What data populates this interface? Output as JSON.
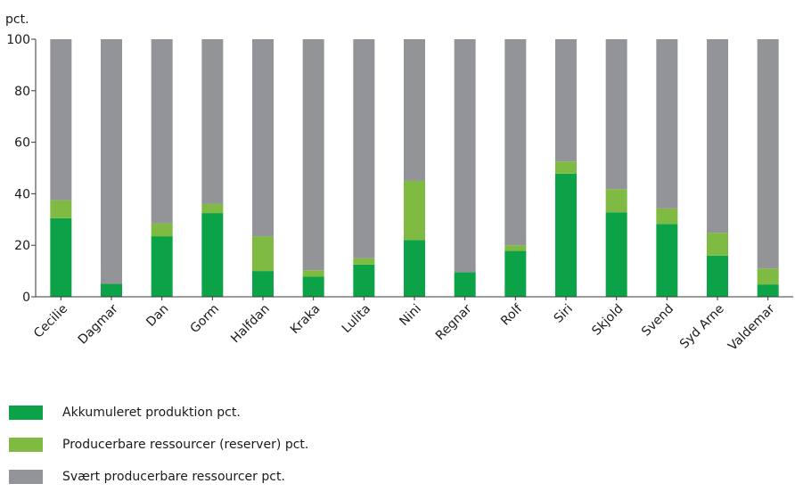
{
  "chart_data": {
    "type": "bar",
    "stacked": true,
    "y_unit_label": "pct.",
    "ylim": [
      0,
      100
    ],
    "yticks": [
      0,
      20,
      40,
      60,
      80,
      100
    ],
    "categories": [
      "Cecilie",
      "Dagmar",
      "Dan",
      "Gorm",
      "Halfdan",
      "Kraka",
      "Lulita",
      "Nini",
      "Regnar",
      "Rolf",
      "Siri",
      "Skjold",
      "Svend",
      "Syd Arne",
      "Valdemar"
    ],
    "series": [
      {
        "name": "Akkumuleret produktion pct.",
        "color": "#0ca348",
        "values": [
          30.5,
          5,
          23.5,
          32.5,
          10,
          7.8,
          12.5,
          22,
          9.5,
          17.8,
          47.8,
          32.8,
          28.3,
          16,
          4.8
        ]
      },
      {
        "name": "Producerbare ressourcer (reserver) pct.",
        "color": "#7fba42",
        "values": [
          7,
          0,
          5,
          3.5,
          13.5,
          2.5,
          2.5,
          23,
          0,
          2.2,
          4.7,
          9,
          6,
          8.8,
          6.2
        ]
      },
      {
        "name": "Svært producerbare ressourcer pct.",
        "color": "#929497",
        "values": [
          62.5,
          95,
          71.5,
          64,
          76.5,
          89.7,
          85,
          55,
          90.5,
          80,
          47.5,
          58.2,
          65.7,
          75.2,
          89
        ]
      }
    ],
    "legend_position": "bottom-left",
    "grid": false
  }
}
